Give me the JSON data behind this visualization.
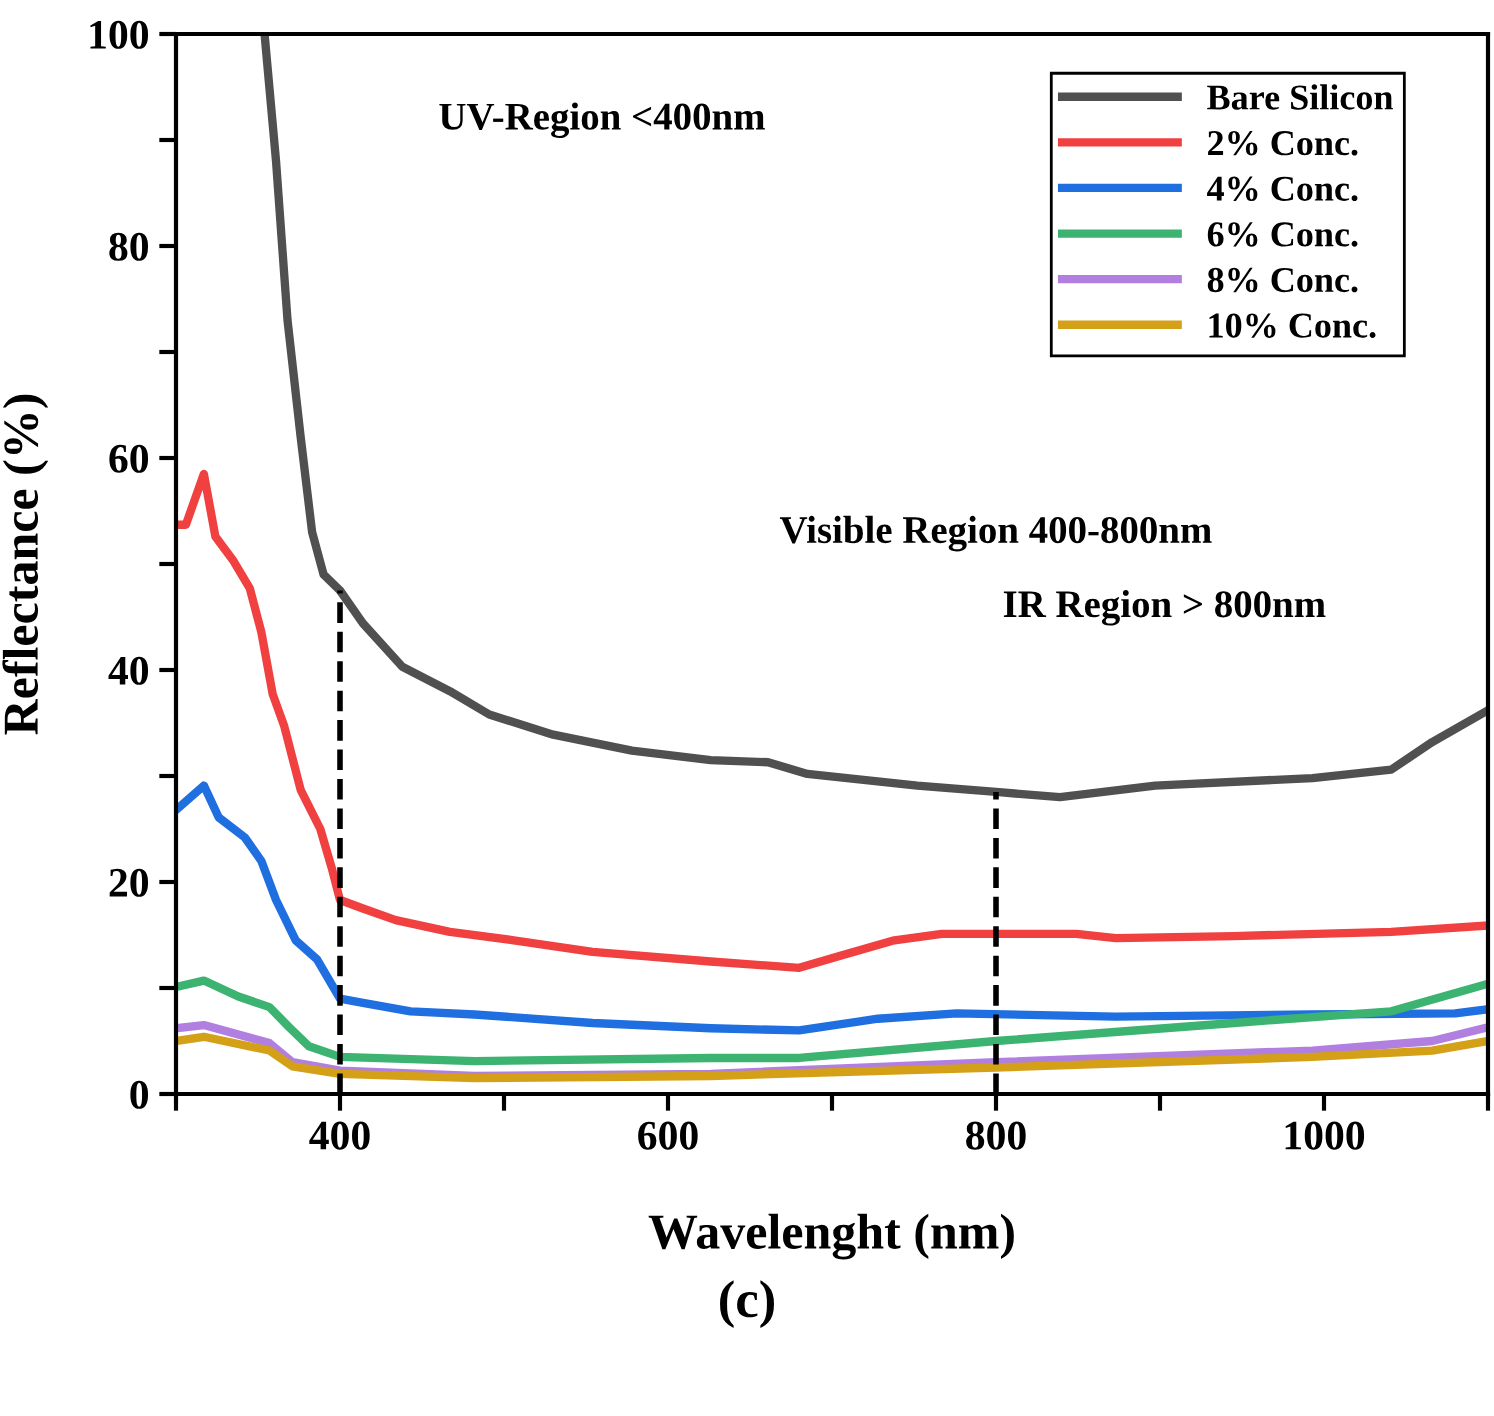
{
  "chart_data": {
    "type": "line",
    "xlabel": "Wavelenght (nm)",
    "ylabel": "Reflectance (%)",
    "xlim": [
      300,
      1100
    ],
    "ylim": [
      0,
      100
    ],
    "xticks": [
      {
        "value": 300,
        "label": null
      },
      400,
      {
        "value": 500,
        "label": null
      },
      600,
      {
        "value": 700,
        "label": null
      },
      800,
      {
        "value": 900,
        "label": null
      },
      1000,
      {
        "value": 1100,
        "label": null
      }
    ],
    "yticks": [
      0,
      {
        "value": 10,
        "label": null
      },
      20,
      {
        "value": 30,
        "label": null
      },
      40,
      {
        "value": 50,
        "label": null
      },
      60,
      {
        "value": 70,
        "label": null
      },
      80,
      {
        "value": 90,
        "label": null
      },
      100
    ],
    "grid": false,
    "legend": "top right",
    "marker": "none",
    "line_style": "solid",
    "series": [
      {
        "name": "Bare Silicon",
        "color": "#505050",
        "x": [
          354,
          361,
          368,
          376,
          383,
          390,
          400,
          414,
          438,
          467,
          491,
          530,
          578,
          626,
          661,
          685,
          752,
          800,
          839,
          897,
          993,
          1041,
          1066,
          1100
        ],
        "values": [
          100,
          88,
          73,
          62,
          53,
          49,
          47.5,
          44.4,
          40.3,
          38,
          35.8,
          33.9,
          32.4,
          31.5,
          31.3,
          30.2,
          29.1,
          28.5,
          28.0,
          29.1,
          29.8,
          30.6,
          33.2,
          36.2
        ]
      },
      {
        "name": "2% Conc.",
        "color": "#f04040",
        "x": [
          300,
          306,
          317,
          324,
          335,
          345,
          352,
          359,
          366,
          376,
          388,
          395,
          400,
          414,
          434,
          467,
          506,
          554,
          626,
          680,
          704,
          738,
          767,
          849,
          873,
          945,
          1041,
          1100
        ],
        "values": [
          53.7,
          53.7,
          58.5,
          52.6,
          50.3,
          47.7,
          43.6,
          37.7,
          34.7,
          28.7,
          25,
          21.3,
          18.3,
          17.5,
          16.4,
          15.3,
          14.5,
          13.4,
          12.5,
          11.9,
          13.0,
          14.5,
          15.1,
          15.1,
          14.7,
          14.9,
          15.3,
          15.9
        ]
      },
      {
        "name": "4% Conc.",
        "color": "#1f6fe0",
        "x": [
          300,
          317,
          326,
          342,
          352,
          361,
          373,
          386,
          400,
          414,
          443,
          482,
          554,
          626,
          680,
          728,
          776,
          873,
          993,
          1080,
          1100
        ],
        "values": [
          26.8,
          29.1,
          26.1,
          24.2,
          22,
          18.3,
          14.5,
          12.7,
          9,
          8.6,
          7.8,
          7.5,
          6.7,
          6.2,
          6.0,
          7.1,
          7.6,
          7.3,
          7.5,
          7.6,
          8.0
        ]
      },
      {
        "name": "6% Conc.",
        "color": "#3cb371",
        "x": [
          300,
          317,
          338,
          357,
          369,
          381,
          400,
          482,
          626,
          680,
          800,
          945,
          1041,
          1100
        ],
        "values": [
          10.1,
          10.7,
          9.2,
          8.2,
          6.3,
          4.5,
          3.5,
          3.1,
          3.4,
          3.4,
          5.0,
          6.7,
          7.8,
          10.4
        ]
      },
      {
        "name": "8% Conc.",
        "color": "#b07fe0",
        "x": [
          300,
          317,
          357,
          371,
          400,
          482,
          626,
          800,
          993,
          1066,
          1100
        ],
        "values": [
          6.2,
          6.5,
          4.8,
          3.0,
          2.2,
          1.7,
          1.9,
          3.0,
          4.1,
          5.0,
          6.3
        ]
      },
      {
        "name": "10% Conc.",
        "color": "#d4a017",
        "x": [
          300,
          317,
          357,
          371,
          400,
          482,
          626,
          800,
          993,
          1066,
          1100
        ],
        "values": [
          5.0,
          5.4,
          4.1,
          2.6,
          1.9,
          1.5,
          1.7,
          2.5,
          3.5,
          4.1,
          5.0
        ]
      }
    ],
    "ref_lines": [
      {
        "axis": "x",
        "value": 400,
        "color": "#000000",
        "line_style": "dashed"
      },
      {
        "axis": "x",
        "value": 800,
        "color": "#000000",
        "line_style": "dashed"
      }
    ],
    "annotations": [
      "UV-Region <400nm",
      "Visible Region 400-800nm",
      "IR Region > 800nm",
      "(c)"
    ]
  }
}
